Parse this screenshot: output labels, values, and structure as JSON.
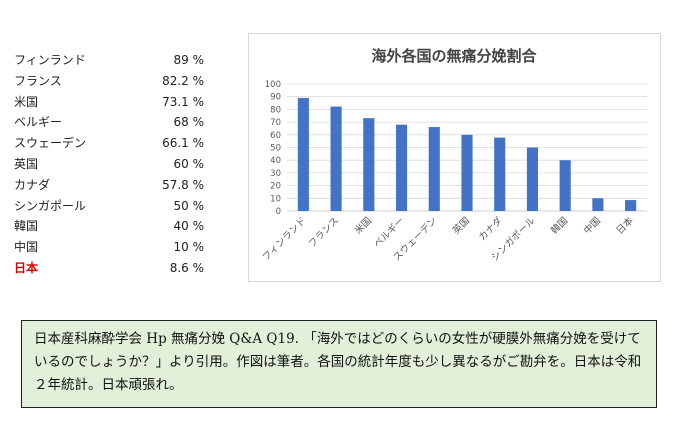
{
  "table": [
    {
      "country": "フィンランド",
      "percent": "89 %"
    },
    {
      "country": "フランス",
      "percent": "82.2 %"
    },
    {
      "country": "米国",
      "percent": "73.1 %"
    },
    {
      "country": "ベルギー",
      "percent": "68 %"
    },
    {
      "country": "スウェーデン",
      "percent": "66.1 %"
    },
    {
      "country": "英国",
      "percent": "60 %"
    },
    {
      "country": "カナダ",
      "percent": "57.8 %"
    },
    {
      "country": "シンガポール",
      "percent": "50 %"
    },
    {
      "country": "韓国",
      "percent": "40 %"
    },
    {
      "country": "中国",
      "percent": "10 %"
    },
    {
      "country": "日本",
      "percent": "8.6 %"
    }
  ],
  "highlight_color": "#e00000",
  "chart_data": {
    "type": "bar",
    "title": "海外各国の無痛分娩割合",
    "categories": [
      "フィンランド",
      "フランス",
      "米国",
      "ベルギー",
      "スウェーデン",
      "英国",
      "カナダ",
      "シンガポール",
      "韓国",
      "中国",
      "日本"
    ],
    "values": [
      89,
      82.2,
      73.1,
      68,
      66.1,
      60,
      57.8,
      50,
      40,
      10,
      8.6
    ],
    "ylim": [
      0,
      100
    ],
    "yticks": [
      "0",
      "10",
      "20",
      "30",
      "40",
      "50",
      "60",
      "70",
      "80",
      "90",
      "100"
    ],
    "grid": true,
    "bar_color": "#4472c4"
  },
  "note": "日本産科麻酔学会 Hp 無痛分娩 Q&A Q19. 「海外ではどのくらいの女性が硬膜外無痛分娩を受けているのでしょうか？」より引用。作図は筆者。各国の統計年度も少し異なるがご勘弁を。日本は令和２年統計。日本頑張れ。",
  "note_bg": "#e3f0d9"
}
